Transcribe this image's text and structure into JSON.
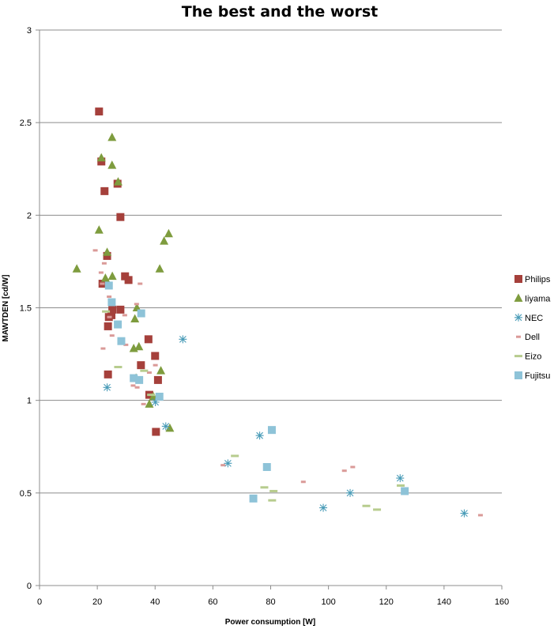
{
  "chart_data": {
    "type": "scatter",
    "title": "The best and the worst",
    "xlabel": "Power consumption [W]",
    "ylabel": "MAWTDEN [cd/W]",
    "xlim": [
      0,
      160
    ],
    "ylim": [
      0,
      3
    ],
    "xticks": [
      0,
      20,
      40,
      60,
      80,
      100,
      120,
      140,
      160
    ],
    "yticks": [
      0,
      0.5,
      1,
      1.5,
      2,
      2.5,
      3
    ],
    "grid": "horizontal",
    "legend_position": "right",
    "series": [
      {
        "name": "Philips",
        "marker": "square",
        "color": "#A5403B",
        "points": [
          [
            20.6,
            2.56
          ],
          [
            21.4,
            2.29
          ],
          [
            22.5,
            2.13
          ],
          [
            27.0,
            2.17
          ],
          [
            28.0,
            1.99
          ],
          [
            23.4,
            1.78
          ],
          [
            21.8,
            1.63
          ],
          [
            29.6,
            1.67
          ],
          [
            30.8,
            1.65
          ],
          [
            25.2,
            1.49
          ],
          [
            24.9,
            1.46
          ],
          [
            24.0,
            1.45
          ],
          [
            28.0,
            1.49
          ],
          [
            23.7,
            1.4
          ],
          [
            37.7,
            1.33
          ],
          [
            40.0,
            1.24
          ],
          [
            35.1,
            1.19
          ],
          [
            23.7,
            1.14
          ],
          [
            41.0,
            1.11
          ],
          [
            38.0,
            1.03
          ],
          [
            40.3,
            0.83
          ]
        ]
      },
      {
        "name": "Iiyama",
        "marker": "triangle",
        "color": "#7E9C3E",
        "points": [
          [
            12.9,
            1.71
          ],
          [
            20.6,
            1.92
          ],
          [
            21.4,
            2.31
          ],
          [
            25.1,
            2.42
          ],
          [
            25.1,
            2.27
          ],
          [
            27.2,
            2.18
          ],
          [
            43.1,
            1.86
          ],
          [
            44.7,
            1.9
          ],
          [
            23.4,
            1.8
          ],
          [
            22.8,
            1.66
          ],
          [
            25.2,
            1.67
          ],
          [
            41.6,
            1.71
          ],
          [
            33.0,
            1.44
          ],
          [
            33.7,
            1.5
          ],
          [
            32.6,
            1.28
          ],
          [
            34.4,
            1.29
          ],
          [
            42.0,
            1.16
          ],
          [
            33.4,
            1.12
          ],
          [
            39.4,
            1.02
          ],
          [
            45.1,
            0.85
          ],
          [
            38.0,
            0.98
          ]
        ]
      },
      {
        "name": "NEC",
        "marker": "asterisk",
        "color": "#4A9CB8",
        "points": [
          [
            23.4,
            1.07
          ],
          [
            49.6,
            1.33
          ],
          [
            40.1,
            0.99
          ],
          [
            43.7,
            0.86
          ],
          [
            65.2,
            0.66
          ],
          [
            76.2,
            0.81
          ],
          [
            98.2,
            0.42
          ],
          [
            107.5,
            0.5
          ],
          [
            124.8,
            0.58
          ],
          [
            147.0,
            0.39
          ]
        ]
      },
      {
        "name": "Dell",
        "marker": "dash-short",
        "color": "#DA9A98",
        "points": [
          [
            19.3,
            1.81
          ],
          [
            22.4,
            1.74
          ],
          [
            21.3,
            1.69
          ],
          [
            21.7,
            1.63
          ],
          [
            24.1,
            1.56
          ],
          [
            24.2,
            1.45
          ],
          [
            29.5,
            1.46
          ],
          [
            33.6,
            1.52
          ],
          [
            34.8,
            1.63
          ],
          [
            25.1,
            1.35
          ],
          [
            22.0,
            1.28
          ],
          [
            29.9,
            1.3
          ],
          [
            38.0,
            1.15
          ],
          [
            40.1,
            1.19
          ],
          [
            32.4,
            1.08
          ],
          [
            33.8,
            1.07
          ],
          [
            36.0,
            0.98
          ],
          [
            63.5,
            0.65
          ],
          [
            91.3,
            0.56
          ],
          [
            105.5,
            0.62
          ],
          [
            108.4,
            0.64
          ],
          [
            152.6,
            0.38
          ]
        ]
      },
      {
        "name": "Eizo",
        "marker": "dash-long",
        "color": "#B7CC8E",
        "points": [
          [
            23.0,
            1.48
          ],
          [
            27.2,
            1.18
          ],
          [
            36.2,
            1.16
          ],
          [
            38.6,
            1.03
          ],
          [
            67.6,
            0.7
          ],
          [
            77.8,
            0.53
          ],
          [
            81.0,
            0.51
          ],
          [
            80.5,
            0.46
          ],
          [
            113.1,
            0.43
          ],
          [
            116.8,
            0.41
          ],
          [
            125.0,
            0.54
          ]
        ]
      },
      {
        "name": "Fujitsu",
        "marker": "square",
        "color": "#8EC3D8",
        "points": [
          [
            24.0,
            1.62
          ],
          [
            25.0,
            1.53
          ],
          [
            27.1,
            1.41
          ],
          [
            35.2,
            1.47
          ],
          [
            28.3,
            1.32
          ],
          [
            32.6,
            1.12
          ],
          [
            34.5,
            1.11
          ],
          [
            41.5,
            1.02
          ],
          [
            74.0,
            0.47
          ],
          [
            78.7,
            0.64
          ],
          [
            80.4,
            0.84
          ],
          [
            126.4,
            0.51
          ]
        ]
      }
    ]
  }
}
